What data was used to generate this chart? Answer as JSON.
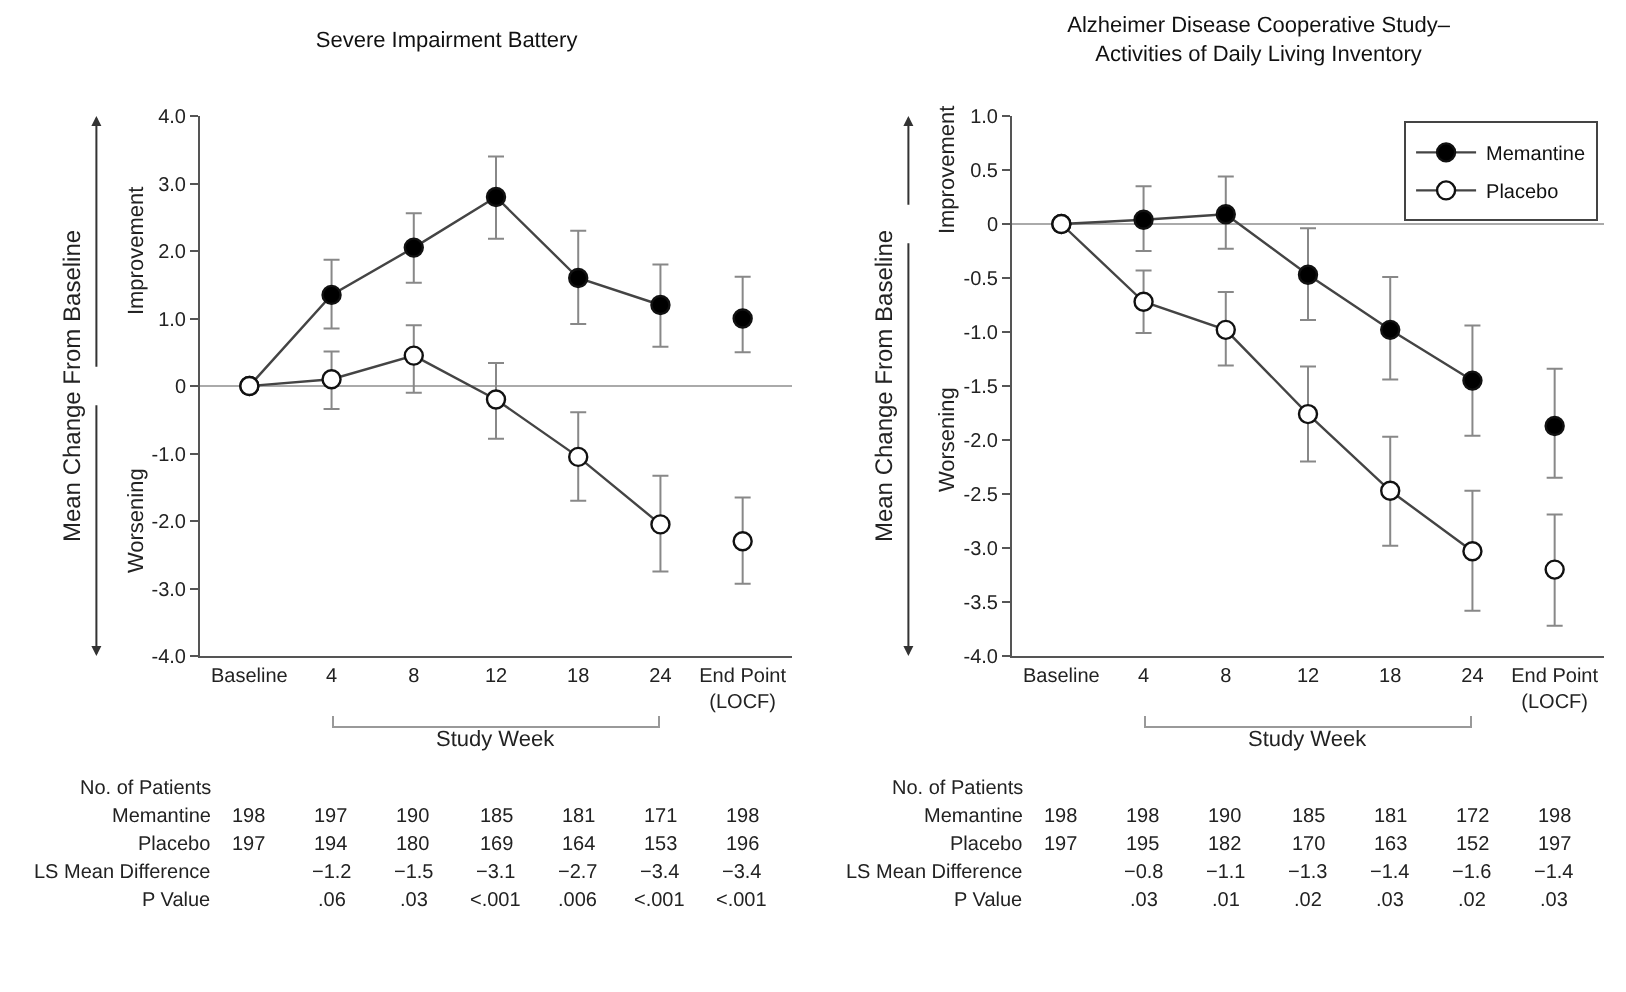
{
  "chart_data": [
    {
      "type": "line",
      "title": "Severe Impairment Battery",
      "ylabel": "Mean Change From Baseline",
      "categories": [
        "Baseline",
        "4",
        "8",
        "12",
        "18",
        "24",
        "End Point\n(LOCF)"
      ],
      "ylim": [
        -4,
        4
      ],
      "yticks": [
        {
          "value": 4,
          "label": "4.0"
        },
        {
          "value": 3,
          "label": "3.0"
        },
        {
          "value": 2,
          "label": "2.0"
        },
        {
          "value": 1,
          "label": "1.0"
        },
        0,
        {
          "value": -1,
          "label": "-1.0"
        },
        {
          "value": -2,
          "label": "-2.0"
        },
        {
          "value": -3,
          "label": "-3.0"
        },
        {
          "value": -4,
          "label": "-4.0"
        }
      ],
      "grid": false,
      "legend": false,
      "marker": "circle",
      "line_style": "solid",
      "ref_lines": [
        {
          "axis": "y",
          "value": 0,
          "color": "#aaaaaa"
        }
      ],
      "series": [
        {
          "type": "line",
          "color": "#000000",
          "values": [
            0,
            1.35,
            2.05,
            2.8,
            1.6,
            1.2,
            null
          ],
          "errors": [
            null,
            [
              0.85,
              1.87
            ],
            [
              1.53,
              2.56
            ],
            [
              2.18,
              3.4
            ],
            [
              0.92,
              2.3
            ],
            [
              0.58,
              1.8
            ],
            null
          ]
        },
        {
          "type": "scatter",
          "color": "#000000",
          "values": [
            null,
            null,
            null,
            null,
            null,
            null,
            1.0
          ],
          "errors": [
            null,
            null,
            null,
            null,
            null,
            null,
            [
              0.5,
              1.62
            ]
          ]
        },
        {
          "type": "line",
          "color": "#ffffff",
          "values": [
            0,
            0.1,
            0.45,
            -0.2,
            -1.05,
            -2.05,
            null
          ],
          "errors": [
            null,
            [
              -0.34,
              0.51
            ],
            [
              -0.1,
              0.9
            ],
            [
              -0.78,
              0.34
            ],
            [
              -1.7,
              -0.39
            ],
            [
              -2.75,
              -1.33
            ],
            null
          ]
        },
        {
          "type": "scatter",
          "color": "#ffffff",
          "values": [
            null,
            null,
            null,
            null,
            null,
            null,
            -2.3
          ],
          "errors": [
            null,
            null,
            null,
            null,
            null,
            null,
            [
              -2.93,
              -1.65
            ]
          ]
        }
      ],
      "annotations": [
        "Improvement",
        "Worsening",
        "Study Week",
        "No. of Patients",
        "Memantine",
        "198",
        "197",
        "190",
        "185",
        "181",
        "171",
        "198",
        "Placebo",
        "197",
        "194",
        "180",
        "169",
        "164",
        "153",
        "196",
        "LS Mean Difference",
        "−1.2",
        "−1.5",
        "−3.1",
        "−2.7",
        "−3.4",
        "−3.4",
        "P Value",
        ".06",
        ".03",
        "<.001",
        ".006",
        "<.001",
        "<.001"
      ]
    },
    {
      "type": "line",
      "title": "Alzheimer Disease Cooperative Study–\nActivities of Daily Living Inventory",
      "ylabel": "Mean Change From Baseline",
      "categories": [
        "Baseline",
        "4",
        "8",
        "12",
        "18",
        "24",
        "End Point\n(LOCF)"
      ],
      "ylim": [
        -4,
        1
      ],
      "yticks": [
        {
          "value": 1,
          "label": "1.0"
        },
        0.5,
        0,
        -0.5,
        {
          "value": -1,
          "label": "-1.0"
        },
        -1.5,
        {
          "value": -2,
          "label": "-2.0"
        },
        -2.5,
        {
          "value": -3,
          "label": "-3.0"
        },
        -3.5,
        {
          "value": -4,
          "label": "-4.0"
        }
      ],
      "grid": false,
      "legend": "top right",
      "marker": "circle",
      "line_style": "solid",
      "ref_lines": [
        {
          "axis": "y",
          "value": 0,
          "color": "#aaaaaa"
        }
      ],
      "series": [
        {
          "type": "line",
          "name": "Memantine",
          "color": "#000000",
          "values": [
            0,
            0.04,
            0.09,
            -0.47,
            -0.98,
            -1.45,
            null
          ],
          "errors": [
            null,
            [
              -0.25,
              0.35
            ],
            [
              -0.23,
              0.44
            ],
            [
              -0.89,
              -0.04
            ],
            [
              -1.44,
              -0.49
            ],
            [
              -1.96,
              -0.94
            ],
            null
          ]
        },
        {
          "type": "scatter",
          "color": "#000000",
          "values": [
            null,
            null,
            null,
            null,
            null,
            null,
            -1.87
          ],
          "errors": [
            null,
            null,
            null,
            null,
            null,
            null,
            [
              -2.35,
              -1.34
            ]
          ]
        },
        {
          "type": "line",
          "name": "Placebo",
          "color": "#ffffff",
          "values": [
            0,
            -0.72,
            -0.98,
            -1.76,
            -2.47,
            -3.03,
            null
          ],
          "errors": [
            null,
            [
              -1.01,
              -0.43
            ],
            [
              -1.31,
              -0.63
            ],
            [
              -2.2,
              -1.32
            ],
            [
              -2.98,
              -1.97
            ],
            [
              -3.58,
              -2.47
            ],
            null
          ]
        },
        {
          "type": "scatter",
          "color": "#ffffff",
          "values": [
            null,
            null,
            null,
            null,
            null,
            null,
            -3.2
          ],
          "errors": [
            null,
            null,
            null,
            null,
            null,
            null,
            [
              -3.72,
              -2.69
            ]
          ]
        }
      ],
      "annotations": [
        "Improvement",
        "Worsening",
        "Study Week",
        "No. of Patients",
        "Memantine",
        "198",
        "198",
        "190",
        "185",
        "181",
        "172",
        "198",
        "Placebo",
        "197",
        "195",
        "182",
        "170",
        "163",
        "152",
        "197",
        "LS Mean Difference",
        "−0.8",
        "−1.1",
        "−1.3",
        "−1.4",
        "−1.6",
        "−1.4",
        "P Value",
        ".03",
        ".01",
        ".02",
        ".03",
        ".02",
        ".03"
      ]
    }
  ]
}
